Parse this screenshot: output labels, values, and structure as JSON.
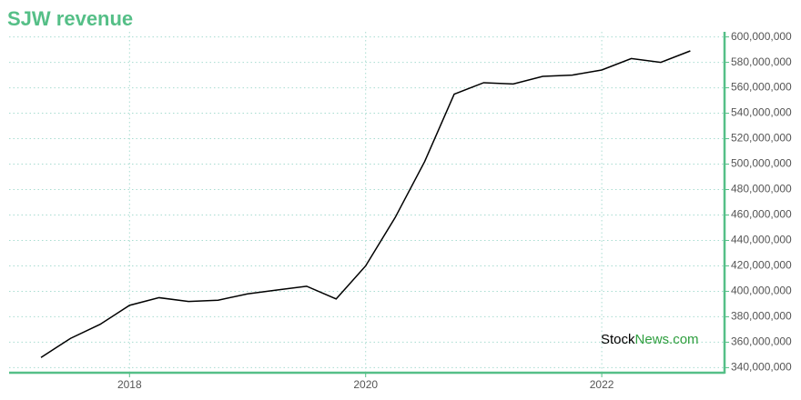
{
  "chart_data": {
    "type": "line",
    "title": "SJW revenue",
    "x": [
      2017.25,
      2017.5,
      2017.75,
      2018,
      2018.25,
      2018.5,
      2018.75,
      2019,
      2019.25,
      2019.5,
      2019.75,
      2020,
      2020.25,
      2020.5,
      2020.75,
      2021,
      2021.25,
      2021.5,
      2021.75,
      2022,
      2022.25,
      2022.5,
      2022.75
    ],
    "series": [
      {
        "name": "SJW revenue",
        "color": "#000000",
        "values": [
          348000000,
          363000000,
          374000000,
          389000000,
          395000000,
          392000000,
          393000000,
          398000000,
          401000000,
          404000000,
          394000000,
          420000000,
          458000000,
          502000000,
          555000000,
          564000000,
          563000000,
          569000000,
          570000000,
          574000000,
          583000000,
          580000000,
          589000000
        ]
      }
    ],
    "xlim": [
      2016.98,
      2023.04
    ],
    "xticks": [
      2018,
      2020,
      2022
    ],
    "ylim": [
      336000000,
      604000000
    ],
    "yticks": [
      {
        "value": 340000000,
        "label": "340,000,000"
      },
      {
        "value": 360000000,
        "label": "360,000,000"
      },
      {
        "value": 380000000,
        "label": "380,000,000"
      },
      {
        "value": 400000000,
        "label": "400,000,000"
      },
      {
        "value": 420000000,
        "label": "420,000,000"
      },
      {
        "value": 440000000,
        "label": "440,000,000"
      },
      {
        "value": 460000000,
        "label": "460,000,000"
      },
      {
        "value": 480000000,
        "label": "480,000,000"
      },
      {
        "value": 500000000,
        "label": "500,000,000"
      },
      {
        "value": 520000000,
        "label": "520,000,000"
      },
      {
        "value": 540000000,
        "label": "540,000,000"
      },
      {
        "value": 560000000,
        "label": "560,000,000"
      },
      {
        "value": 580000000,
        "label": "580,000,000"
      },
      {
        "value": 600000000,
        "label": "600,000,000"
      }
    ],
    "grid": true,
    "watermark": [
      "Stock",
      "News.com"
    ]
  }
}
